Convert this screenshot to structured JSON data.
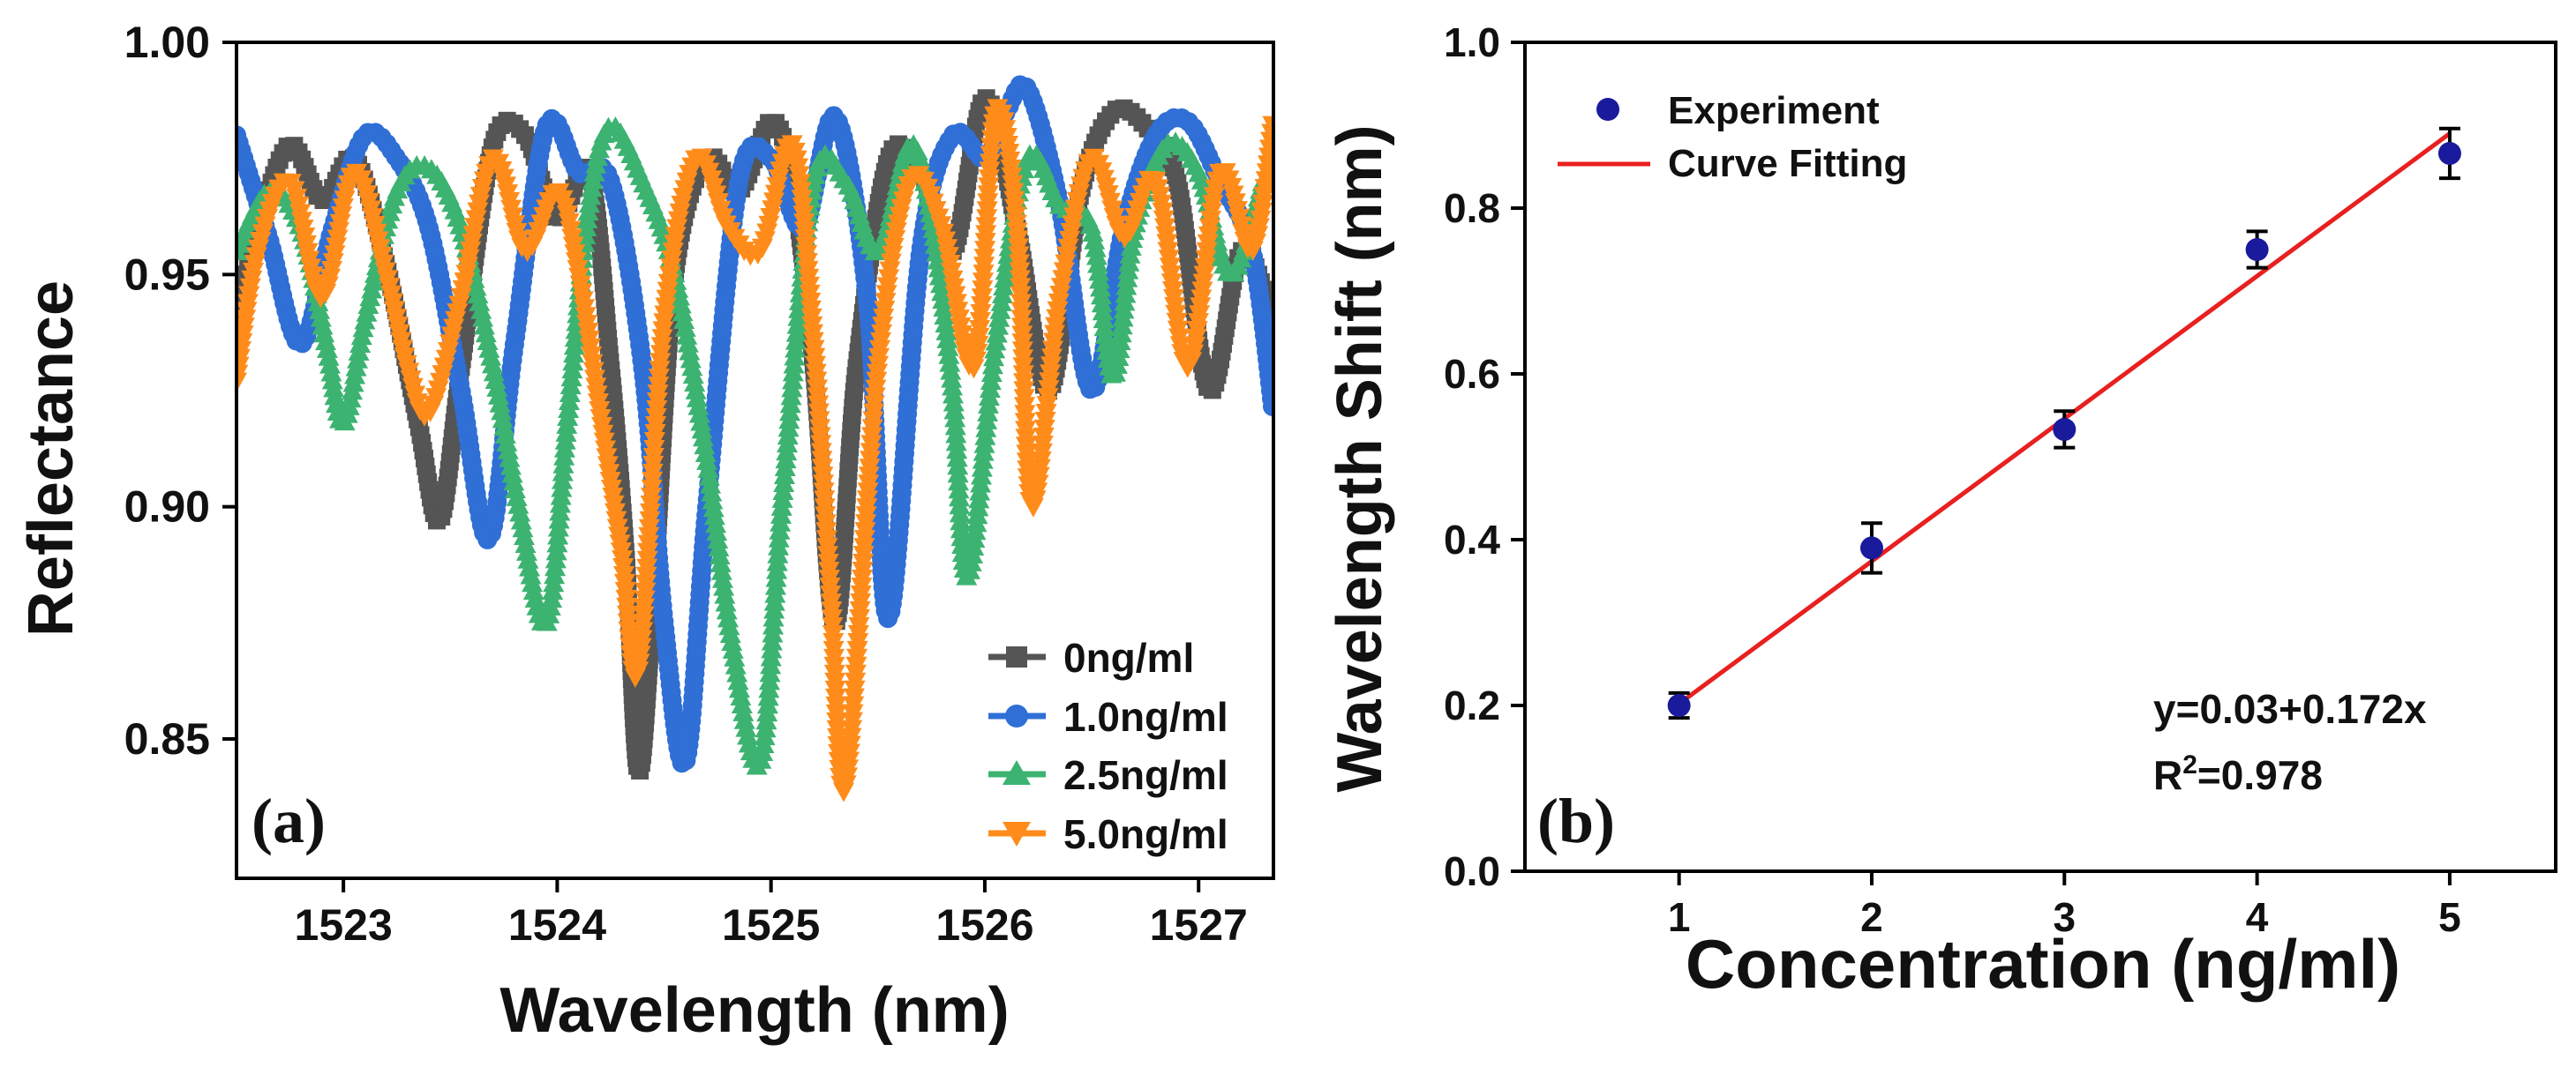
{
  "chart_data": [
    {
      "id": "a",
      "type": "line",
      "panel_label": "(a)",
      "title": "",
      "xlabel": "Wavelength (nm)",
      "ylabel": "Reflectance",
      "xlim": [
        1522.5,
        1527.35
      ],
      "ylim": [
        0.82,
        1.0
      ],
      "xticks": [
        1523,
        1524,
        1525,
        1526,
        1527
      ],
      "xtick_labels": [
        "1523",
        "1524",
        "1525",
        "1526",
        "1527"
      ],
      "yticks": [
        0.85,
        0.9,
        0.95,
        1.0
      ],
      "ytick_labels": [
        "0.85",
        "0.90",
        "0.95",
        "1.00"
      ],
      "legend_position": "bottom-right",
      "series": [
        {
          "name": "0ng/ml",
          "color": "#555555",
          "marker": "square",
          "x": [
            1522.5,
            1522.6,
            1522.75,
            1522.9,
            1523.05,
            1523.2,
            1523.35,
            1523.45,
            1523.55,
            1523.7,
            1523.85,
            1524.0,
            1524.15,
            1524.25,
            1524.32,
            1524.38,
            1524.45,
            1524.55,
            1524.7,
            1524.85,
            1525.0,
            1525.1,
            1525.2,
            1525.3,
            1525.4,
            1525.55,
            1525.7,
            1525.85,
            1526.0,
            1526.15,
            1526.3,
            1526.45,
            1526.6,
            1526.75,
            1526.9,
            1527.05,
            1527.2,
            1527.35
          ],
          "y": [
            0.94,
            0.96,
            0.978,
            0.966,
            0.975,
            0.952,
            0.918,
            0.897,
            0.93,
            0.978,
            0.98,
            0.962,
            0.972,
            0.93,
            0.89,
            0.843,
            0.88,
            0.95,
            0.975,
            0.968,
            0.983,
            0.97,
            0.93,
            0.875,
            0.93,
            0.975,
            0.972,
            0.955,
            0.988,
            0.96,
            0.925,
            0.968,
            0.985,
            0.982,
            0.97,
            0.925,
            0.955,
            0.94
          ]
        },
        {
          "name": "1.0ng/ml",
          "color": "#2f6fd6",
          "marker": "circle",
          "x": [
            1522.5,
            1522.65,
            1522.8,
            1522.95,
            1523.1,
            1523.25,
            1523.4,
            1523.55,
            1523.68,
            1523.8,
            1523.95,
            1524.1,
            1524.25,
            1524.4,
            1524.5,
            1524.6,
            1524.7,
            1524.85,
            1525.0,
            1525.15,
            1525.3,
            1525.45,
            1525.55,
            1525.7,
            1525.85,
            1526.0,
            1526.1,
            1526.2,
            1526.35,
            1526.5,
            1526.65,
            1526.8,
            1526.95,
            1527.1,
            1527.25,
            1527.35
          ],
          "y": [
            0.98,
            0.958,
            0.935,
            0.96,
            0.98,
            0.975,
            0.96,
            0.925,
            0.893,
            0.935,
            0.982,
            0.972,
            0.97,
            0.93,
            0.875,
            0.845,
            0.9,
            0.97,
            0.975,
            0.96,
            0.984,
            0.945,
            0.876,
            0.955,
            0.98,
            0.975,
            0.985,
            0.99,
            0.965,
            0.925,
            0.96,
            0.98,
            0.983,
            0.97,
            0.955,
            0.92
          ]
        },
        {
          "name": "2.5ng/ml",
          "color": "#3cb371",
          "marker": "triangle-up",
          "x": [
            1522.5,
            1522.65,
            1522.8,
            1522.92,
            1523.0,
            1523.1,
            1523.25,
            1523.4,
            1523.55,
            1523.7,
            1523.82,
            1523.95,
            1524.05,
            1524.15,
            1524.25,
            1524.4,
            1524.55,
            1524.7,
            1524.82,
            1524.95,
            1525.05,
            1525.2,
            1525.35,
            1525.5,
            1525.65,
            1525.75,
            1525.85,
            1525.92,
            1526.05,
            1526.2,
            1526.35,
            1526.5,
            1526.6,
            1526.7,
            1526.85,
            1527.0,
            1527.15,
            1527.3
          ],
          "y": [
            0.955,
            0.968,
            0.96,
            0.935,
            0.918,
            0.94,
            0.968,
            0.973,
            0.96,
            0.93,
            0.9,
            0.875,
            0.92,
            0.965,
            0.982,
            0.97,
            0.95,
            0.91,
            0.87,
            0.845,
            0.9,
            0.97,
            0.97,
            0.955,
            0.978,
            0.962,
            0.925,
            0.885,
            0.935,
            0.975,
            0.965,
            0.96,
            0.928,
            0.96,
            0.978,
            0.972,
            0.95,
            0.97
          ]
        },
        {
          "name": "5.0ng/ml",
          "color": "#ff8c1a",
          "marker": "triangle-down",
          "x": [
            1522.5,
            1522.6,
            1522.75,
            1522.9,
            1523.05,
            1523.2,
            1523.3,
            1523.4,
            1523.55,
            1523.7,
            1523.85,
            1524.0,
            1524.1,
            1524.2,
            1524.3,
            1524.38,
            1524.5,
            1524.65,
            1524.8,
            1524.95,
            1525.1,
            1525.2,
            1525.28,
            1525.35,
            1525.5,
            1525.65,
            1525.8,
            1525.95,
            1526.05,
            1526.15,
            1526.22,
            1526.35,
            1526.5,
            1526.65,
            1526.8,
            1526.95,
            1527.1,
            1527.25,
            1527.35
          ],
          "y": [
            0.927,
            0.955,
            0.97,
            0.945,
            0.972,
            0.95,
            0.93,
            0.92,
            0.945,
            0.975,
            0.955,
            0.968,
            0.95,
            0.92,
            0.89,
            0.865,
            0.94,
            0.975,
            0.96,
            0.955,
            0.978,
            0.935,
            0.88,
            0.84,
            0.93,
            0.97,
            0.96,
            0.93,
            0.985,
            0.96,
            0.9,
            0.945,
            0.975,
            0.958,
            0.97,
            0.93,
            0.972,
            0.955,
            0.983
          ]
        }
      ]
    },
    {
      "id": "b",
      "type": "scatter",
      "panel_label": "(b)",
      "title": "",
      "xlabel": "Concentration (ng/ml)",
      "ylabel": "Wavelength Shift (nm)",
      "xlim": [
        0.2,
        5.55
      ],
      "ylim": [
        0.0,
        1.0
      ],
      "xticks": [
        1,
        2,
        3,
        4,
        5
      ],
      "xtick_labels": [
        "1",
        "2",
        "3",
        "4",
        "5"
      ],
      "yticks": [
        0.0,
        0.2,
        0.4,
        0.6,
        0.8,
        1.0
      ],
      "ytick_labels": [
        "0.0",
        "0.2",
        "0.4",
        "0.6",
        "0.8",
        "1.0"
      ],
      "legend_position": "top-left",
      "series": [
        {
          "name": "Experiment",
          "color": "#1a1a9c",
          "marker": "circle",
          "x": [
            1,
            2,
            3,
            4,
            5
          ],
          "y": [
            0.2,
            0.39,
            0.533,
            0.75,
            0.866
          ],
          "yerr": [
            0.015,
            0.03,
            0.022,
            0.022,
            0.03
          ]
        },
        {
          "name": "Curve Fitting",
          "color": "#e82020",
          "type": "line",
          "x": [
            1,
            5
          ],
          "y": [
            0.202,
            0.89
          ]
        }
      ],
      "annotation": {
        "equation": "y=0.03+0.172x",
        "r2_prefix": "R",
        "r2_sup": "2",
        "r2_value": "=0.978"
      }
    }
  ]
}
